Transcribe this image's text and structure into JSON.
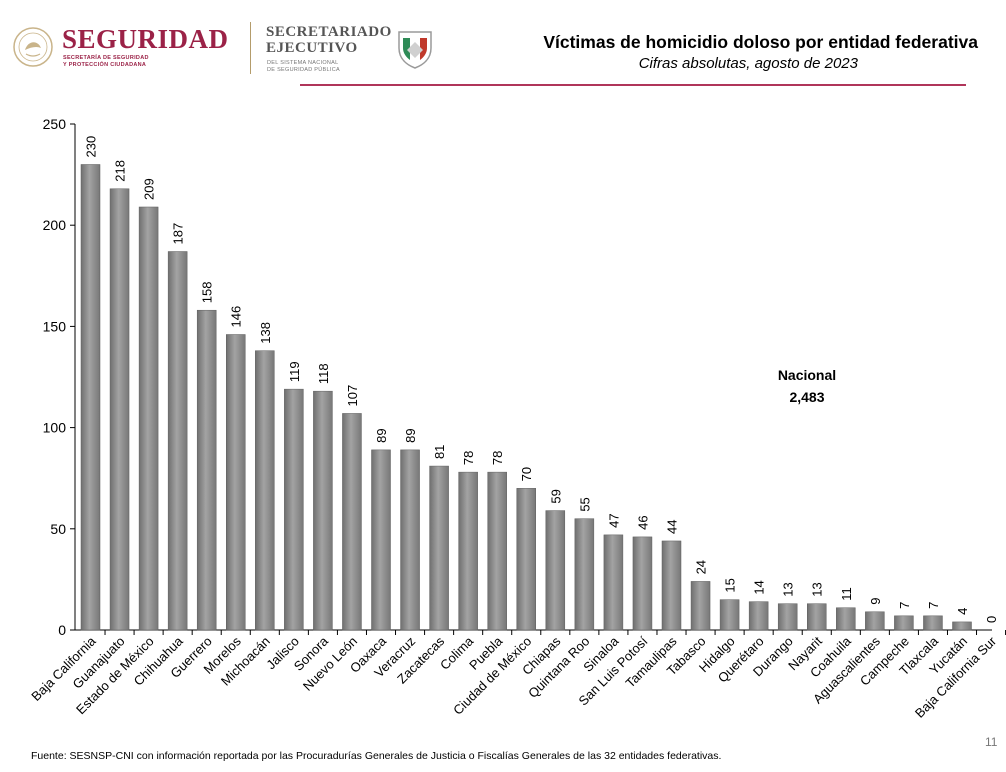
{
  "header": {
    "logo_seguridad": "SEGURIDAD",
    "logo_seguridad_sub1": "SECRETARÍA DE SEGURIDAD",
    "logo_seguridad_sub2": "Y PROTECCIÓN CIUDADANA",
    "logo_se_line1": "SECRETARIADO",
    "logo_se_line2": "EJECUTIVO",
    "logo_se_sub1": "DEL SISTEMA NACIONAL",
    "logo_se_sub2": "DE SEGURIDAD PÚBLICA",
    "title": "Víctimas de homicidio doloso por entidad federativa",
    "subtitle": "Cifras absolutas, agosto de 2023",
    "accent_color": "#9b2247"
  },
  "annotation": {
    "label": "Nacional",
    "value": "2,483"
  },
  "footer": {
    "source": "Fuente: SESNSP-CNI con información reportada por las Procuradurías Generales de Justicia o Fiscalías Generales de las 32 entidades federativas.",
    "page_number": "11"
  },
  "chart_data": {
    "type": "bar",
    "categories": [
      "Baja California",
      "Guanajuato",
      "Estado de México",
      "Chihuahua",
      "Guerrero",
      "Morelos",
      "Michoacán",
      "Jalisco",
      "Sonora",
      "Nuevo León",
      "Oaxaca",
      "Veracruz",
      "Zacatecas",
      "Colima",
      "Puebla",
      "Ciudad de México",
      "Chiapas",
      "Quintana Roo",
      "Sinaloa",
      "San Luis Potosí",
      "Tamaulipas",
      "Tabasco",
      "Hidalgo",
      "Querétaro",
      "Durango",
      "Nayarit",
      "Coahuila",
      "Aguascalientes",
      "Campeche",
      "Tlaxcala",
      "Yucatán",
      "Baja California Sur"
    ],
    "values": [
      230,
      218,
      209,
      187,
      158,
      146,
      138,
      119,
      118,
      107,
      89,
      89,
      81,
      78,
      78,
      70,
      59,
      55,
      47,
      46,
      44,
      24,
      15,
      14,
      13,
      13,
      11,
      9,
      7,
      7,
      4,
      0
    ],
    "data_labels": [
      "230",
      "218",
      "209",
      "187",
      "158",
      "146",
      "138",
      "119",
      "118",
      "107",
      "89",
      "89",
      "81",
      "78",
      "78",
      "70",
      "59",
      "55",
      "47",
      "46",
      "44",
      "24",
      "15",
      "14",
      "13",
      "13",
      "11",
      "9",
      "7",
      "7",
      "4",
      "0"
    ],
    "yticks": [
      "0",
      "50",
      "100",
      "150",
      "200",
      "250"
    ],
    "ylim": [
      0,
      250
    ],
    "grid": false,
    "bar_color": "#8c8c8c"
  }
}
